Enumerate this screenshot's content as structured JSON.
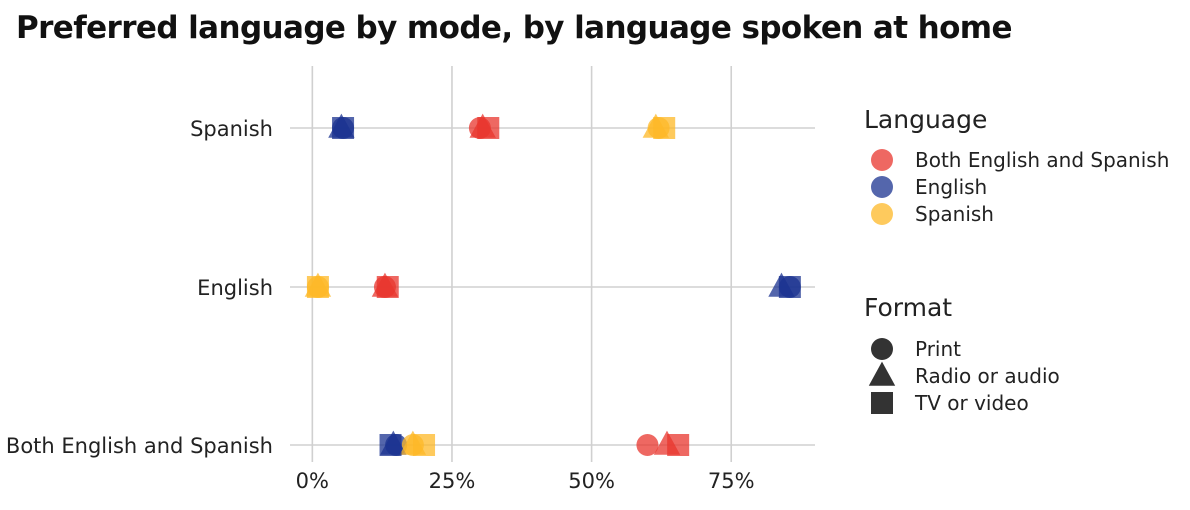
{
  "chart_data": {
    "type": "scatter",
    "title": "Preferred language by mode, by language spoken at home",
    "xlabel": "",
    "ylabel": "",
    "x_ticks": [
      "0%",
      "25%",
      "50%",
      "75%"
    ],
    "x_tick_values": [
      0,
      25,
      50,
      75
    ],
    "xlim": [
      -4,
      90
    ],
    "categories": [
      "Spanish",
      "English",
      "Both English and Spanish"
    ],
    "grid": true,
    "legend_position": "right",
    "color_legend": {
      "title": "Language",
      "items": [
        {
          "name": "Both English and Spanish",
          "color": "#e8362e"
        },
        {
          "name": "English",
          "color": "#1b3390"
        },
        {
          "name": "Spanish",
          "color": "#fdb827"
        }
      ]
    },
    "shape_legend": {
      "title": "Format",
      "items": [
        {
          "name": "Print",
          "shape": "circle"
        },
        {
          "name": "Radio or audio",
          "shape": "triangle"
        },
        {
          "name": "TV or video",
          "shape": "square"
        }
      ]
    },
    "series": [
      {
        "category": "Spanish",
        "language": "English",
        "format": "Print",
        "value": 5.5
      },
      {
        "category": "Spanish",
        "language": "English",
        "format": "Radio or audio",
        "value": 5.2
      },
      {
        "category": "Spanish",
        "language": "English",
        "format": "TV or video",
        "value": 5.5
      },
      {
        "category": "Spanish",
        "language": "Both English and Spanish",
        "format": "Print",
        "value": 30.0
      },
      {
        "category": "Spanish",
        "language": "Both English and Spanish",
        "format": "Radio or audio",
        "value": 30.5
      },
      {
        "category": "Spanish",
        "language": "Both English and Spanish",
        "format": "TV or video",
        "value": 31.5
      },
      {
        "category": "Spanish",
        "language": "Spanish",
        "format": "Print",
        "value": 62.0
      },
      {
        "category": "Spanish",
        "language": "Spanish",
        "format": "Radio or audio",
        "value": 61.5
      },
      {
        "category": "Spanish",
        "language": "Spanish",
        "format": "TV or video",
        "value": 63.0
      },
      {
        "category": "English",
        "language": "Spanish",
        "format": "Print",
        "value": 1.0
      },
      {
        "category": "English",
        "language": "Spanish",
        "format": "Radio or audio",
        "value": 1.0
      },
      {
        "category": "English",
        "language": "Spanish",
        "format": "TV or video",
        "value": 1.0
      },
      {
        "category": "English",
        "language": "Both English and Spanish",
        "format": "Print",
        "value": 13.0
      },
      {
        "category": "English",
        "language": "Both English and Spanish",
        "format": "Radio or audio",
        "value": 13.0
      },
      {
        "category": "English",
        "language": "Both English and Spanish",
        "format": "TV or video",
        "value": 13.5
      },
      {
        "category": "English",
        "language": "English",
        "format": "Print",
        "value": 85.5
      },
      {
        "category": "English",
        "language": "English",
        "format": "Radio or audio",
        "value": 84.0
      },
      {
        "category": "English",
        "language": "English",
        "format": "TV or video",
        "value": 85.5
      },
      {
        "category": "Both English and Spanish",
        "language": "English",
        "format": "Print",
        "value": 15.0
      },
      {
        "category": "Both English and Spanish",
        "language": "English",
        "format": "Radio or audio",
        "value": 14.5
      },
      {
        "category": "Both English and Spanish",
        "language": "English",
        "format": "TV or video",
        "value": 14.0
      },
      {
        "category": "Both English and Spanish",
        "language": "Spanish",
        "format": "Print",
        "value": 18.0
      },
      {
        "category": "Both English and Spanish",
        "language": "Spanish",
        "format": "Radio or audio",
        "value": 18.0
      },
      {
        "category": "Both English and Spanish",
        "language": "Spanish",
        "format": "TV or video",
        "value": 20.0
      },
      {
        "category": "Both English and Spanish",
        "language": "Both English and Spanish",
        "format": "Print",
        "value": 60.0
      },
      {
        "category": "Both English and Spanish",
        "language": "Both English and Spanish",
        "format": "Radio or audio",
        "value": 63.5
      },
      {
        "category": "Both English and Spanish",
        "language": "Both English and Spanish",
        "format": "TV or video",
        "value": 65.5
      }
    ]
  }
}
